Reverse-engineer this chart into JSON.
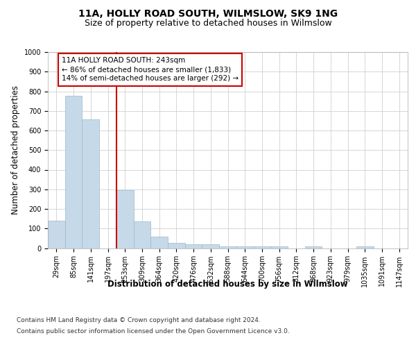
{
  "title": "11A, HOLLY ROAD SOUTH, WILMSLOW, SK9 1NG",
  "subtitle": "Size of property relative to detached houses in Wilmslow",
  "xlabel": "Distribution of detached houses by size in Wilmslow",
  "ylabel": "Number of detached properties",
  "bar_color": "#c6d9e8",
  "bar_edge_color": "#9ab8cc",
  "categories": [
    "29sqm",
    "85sqm",
    "141sqm",
    "197sqm",
    "253sqm",
    "309sqm",
    "364sqm",
    "420sqm",
    "476sqm",
    "532sqm",
    "588sqm",
    "644sqm",
    "700sqm",
    "756sqm",
    "812sqm",
    "868sqm",
    "923sqm",
    "979sqm",
    "1035sqm",
    "1091sqm",
    "1147sqm"
  ],
  "values": [
    140,
    778,
    656,
    0,
    296,
    136,
    57,
    28,
    18,
    18,
    8,
    8,
    8,
    8,
    0,
    8,
    0,
    0,
    8,
    0,
    0
  ],
  "ylim": [
    0,
    1000
  ],
  "yticks": [
    0,
    100,
    200,
    300,
    400,
    500,
    600,
    700,
    800,
    900,
    1000
  ],
  "vline_color": "#cc0000",
  "annotation_text": "11A HOLLY ROAD SOUTH: 243sqm\n← 86% of detached houses are smaller (1,833)\n14% of semi-detached houses are larger (292) →",
  "annotation_box_color": "#ffffff",
  "annotation_edge_color": "#cc0000",
  "background_color": "#ffffff",
  "grid_color": "#d0d0d0",
  "footer_line1": "Contains HM Land Registry data © Crown copyright and database right 2024.",
  "footer_line2": "Contains public sector information licensed under the Open Government Licence v3.0.",
  "title_fontsize": 10,
  "subtitle_fontsize": 9,
  "axis_label_fontsize": 8.5,
  "tick_fontsize": 7,
  "annotation_fontsize": 7.5,
  "footer_fontsize": 6.5
}
